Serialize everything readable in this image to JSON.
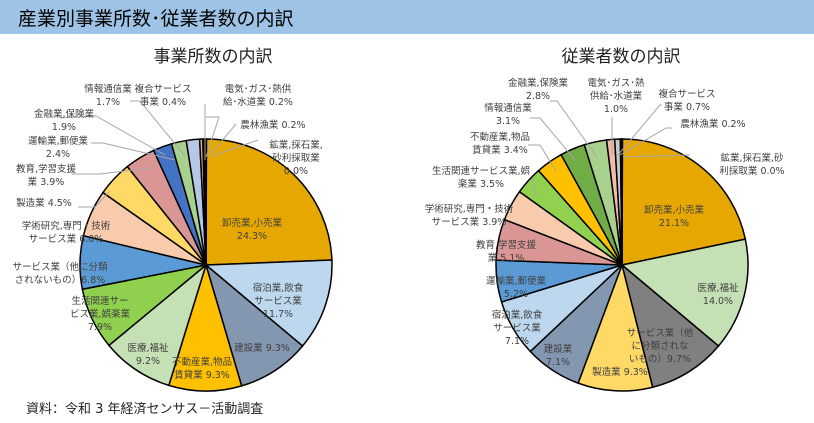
{
  "header": {
    "title": "産業別事業所数･従業者数の内訳"
  },
  "source": "資料：令和 3 年経済センサス－活動調査",
  "chart_data": [
    {
      "type": "pie",
      "title": "事業所数の内訳",
      "start": "12 o'clock, clockwise",
      "slices": [
        {
          "label": "卸売業,小売業",
          "value": 24.3,
          "color": "#e6a800"
        },
        {
          "label": "宿泊業,飲食サービス業",
          "value": 11.7,
          "color": "#bdd7ee"
        },
        {
          "label": "建設業",
          "value": 9.3,
          "color": "#8497b0"
        },
        {
          "label": "不動産業,物品賃貸業",
          "value": 9.3,
          "color": "#ffc000"
        },
        {
          "label": "医療,福祉",
          "value": 9.2,
          "color": "#c5e0b4"
        },
        {
          "label": "生活関連サービス業,娯楽業",
          "value": 7.9,
          "color": "#8fd14f"
        },
        {
          "label": "サービス業（他に分類されないもの）",
          "value": 6.8,
          "color": "#5b9bd5"
        },
        {
          "label": "学術研究,専門・技術サービス業",
          "value": 6.0,
          "color": "#f8cbad"
        },
        {
          "label": "製造業",
          "value": 4.5,
          "color": "#ffd966"
        },
        {
          "label": "教育,学習支援業",
          "value": 3.9,
          "color": "#d99694"
        },
        {
          "label": "運輸業,郵便業",
          "value": 2.4,
          "color": "#4472c4"
        },
        {
          "label": "金融業,保険業",
          "value": 1.9,
          "color": "#a9d18e"
        },
        {
          "label": "情報通信業",
          "value": 1.7,
          "color": "#b4c7e7"
        },
        {
          "label": "複合サービス事業",
          "value": 0.4,
          "color": "#f4b183"
        },
        {
          "label": "電気・ガス・熱供給・水道業",
          "value": 0.2,
          "color": "#404040"
        },
        {
          "label": "農林漁業",
          "value": 0.2,
          "color": "#000000"
        },
        {
          "label": "鉱業,採石業,砂利採取業",
          "value": 0.0,
          "color": "#000000"
        }
      ],
      "labels_text": {
        "wholesale": [
          "卸売業,小売業",
          "24.3%"
        ],
        "hotel": [
          "宿泊業,飲食",
          "サービス業",
          "11.7%"
        ],
        "construction": [
          "建設業 9.3%"
        ],
        "realestate": [
          "不動産業,物品",
          "賃貸業 9.3%"
        ],
        "medical": [
          "医療,福祉",
          "9.2%"
        ],
        "living": [
          "生活関連サー",
          "ビス業,娯楽業",
          "7.9%"
        ],
        "services": [
          "サービス業（他に分類",
          "されないもの）6.8%"
        ],
        "academic": [
          "学術研究,専門・技術",
          "サービス業 6.0%"
        ],
        "manufacturing": [
          "製造業 4.5%"
        ],
        "education": [
          "教育,学習支援",
          "業 3.9%"
        ],
        "transport": [
          "運輸業,郵便業",
          "2.4%"
        ],
        "finance": [
          "金融業,保険業",
          "1.9%"
        ],
        "info": [
          "情報通信業",
          "1.7%"
        ],
        "compound": [
          "複合サービス",
          "事業 0.4%"
        ],
        "utility": [
          "電気･ガス･熱供",
          "給･水道業 0.2%"
        ],
        "agri": [
          "農林漁業 0.2%"
        ],
        "mining": [
          "鉱業,採石業,",
          "砂利採取業",
          "0.0%"
        ]
      }
    },
    {
      "type": "pie",
      "title": "従業者数の内訳",
      "start": "12 o'clock, clockwise",
      "slices": [
        {
          "label": "卸売業,小売業",
          "value": 21.1,
          "color": "#e6a800"
        },
        {
          "label": "医療,福祉",
          "value": 14.0,
          "color": "#c5e0b4"
        },
        {
          "label": "サービス業（他に分類されないもの）",
          "value": 9.7,
          "color": "#808080"
        },
        {
          "label": "製造業",
          "value": 9.3,
          "color": "#ffd966"
        },
        {
          "label": "建設業",
          "value": 7.1,
          "color": "#8497b0"
        },
        {
          "label": "宿泊業,飲食サービス業",
          "value": 7.1,
          "color": "#bdd7ee"
        },
        {
          "label": "運輸業,郵便業",
          "value": 5.2,
          "color": "#5b9bd5"
        },
        {
          "label": "教育,学習支援業",
          "value": 5.1,
          "color": "#d99694"
        },
        {
          "label": "学術研究,専門・技術サービス業",
          "value": 3.9,
          "color": "#f8cbad"
        },
        {
          "label": "生活関連サービス業,娯楽業",
          "value": 3.5,
          "color": "#92d050"
        },
        {
          "label": "不動産業,物品賃貸業",
          "value": 3.4,
          "color": "#ffc000"
        },
        {
          "label": "情報通信業",
          "value": 3.1,
          "color": "#70ad47"
        },
        {
          "label": "金融業,保険業",
          "value": 2.8,
          "color": "#a9d18e"
        },
        {
          "label": "電気・ガス・熱供給・水道業",
          "value": 1.0,
          "color": "#f4b9a8"
        },
        {
          "label": "複合サービス事業",
          "value": 0.7,
          "color": "#c9c9c9"
        },
        {
          "label": "農林漁業",
          "value": 0.2,
          "color": "#404040"
        },
        {
          "label": "鉱業,採石業,砂利採取業",
          "value": 0.0,
          "color": "#000000"
        }
      ],
      "labels_text": {
        "wholesale": [
          "卸売業,小売業",
          "21.1%"
        ],
        "medical": [
          "医療,福祉",
          "14.0%"
        ],
        "services": [
          "サービス業（他",
          "に分類されな",
          "いもの）9.7%"
        ],
        "manufacturing": [
          "製造業 9.3%"
        ],
        "construction": [
          "建設業",
          "7.1%"
        ],
        "hotel": [
          "宿泊業,飲食",
          "サービス業",
          "7.1%"
        ],
        "transport": [
          "運輸業,郵便業",
          "5.2%"
        ],
        "education": [
          "教育,学習支援",
          "業 5.1%"
        ],
        "academic": [
          "学術研究,専門・技術",
          "サービス業 3.9%"
        ],
        "living": [
          "生活関連サービス業,娯",
          "楽業 3.5%"
        ],
        "realestate": [
          "不動産業,物品",
          "賃貸業 3.4%"
        ],
        "info": [
          "情報通信業",
          "3.1%"
        ],
        "finance": [
          "金融業,保険業",
          "2.8%"
        ],
        "utility": [
          "電気･ガス･熱",
          "供給･水道業",
          "1.0%"
        ],
        "compound": [
          "複合サービス",
          "事業 0.7%"
        ],
        "agri": [
          "農林漁業 0.2%"
        ],
        "mining": [
          "鉱業,採石業,砂",
          "利採取業 0.0%"
        ]
      }
    }
  ]
}
